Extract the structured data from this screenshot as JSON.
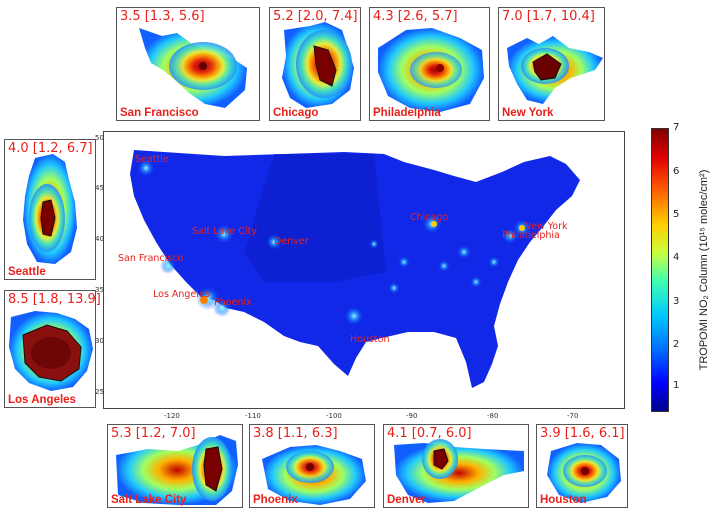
{
  "insets": {
    "sf": {
      "stat": "3.5 [1.3, 5.6]",
      "city": "San Francisco"
    },
    "chicago": {
      "stat": "5.2 [2.0, 7.4]",
      "city": "Chicago"
    },
    "philadelphia": {
      "stat": "4.3 [2.6, 5.7]",
      "city": "Philadelphia"
    },
    "newyork": {
      "stat": "7.0 [1.7, 10.4]",
      "city": "New York"
    },
    "seattle": {
      "stat": "4.0 [1.2, 6.7]",
      "city": "Seattle"
    },
    "losangeles": {
      "stat": "8.5 [1.8, 13.9]",
      "city": "Los Angeles"
    },
    "saltlake": {
      "stat": "5.3 [1.2, 7.0]",
      "city": "Salt Lake City"
    },
    "phoenix": {
      "stat": "3.8 [1.1, 6.3]",
      "city": "Phoenix"
    },
    "denver": {
      "stat": "4.1 [0.7, 6.0]",
      "city": "Denver"
    },
    "houston": {
      "stat": "3.9 [1.6, 6.1]",
      "city": "Houston"
    }
  },
  "main_map": {
    "labels": {
      "seattle": "Seattle",
      "saltlake": "Salt Lake City",
      "denver": "Denver",
      "sanfrancisco": "San Francisco",
      "losangeles": "Los Angeles",
      "phoenix": "Phoenix",
      "houston": "Houston",
      "chicago": "Chicago",
      "newyork": "New York",
      "philadelphia": "Philadelphia"
    },
    "x_ticks": [
      "-120",
      "-110",
      "-100",
      "-90",
      "-80",
      "-70"
    ],
    "y_ticks": [
      "50",
      "45",
      "40",
      "35",
      "30",
      "25"
    ]
  },
  "colorbar": {
    "ticks": [
      "7",
      "6",
      "5",
      "4",
      "3",
      "2",
      "1"
    ],
    "label": "TROPOMI NO₂ Column (10¹⁵ molec/cm²)",
    "colors": [
      "#00008b",
      "#0000ff",
      "#00c8ff",
      "#c8ff40",
      "#ffd000",
      "#ff6000",
      "#800000"
    ]
  }
}
